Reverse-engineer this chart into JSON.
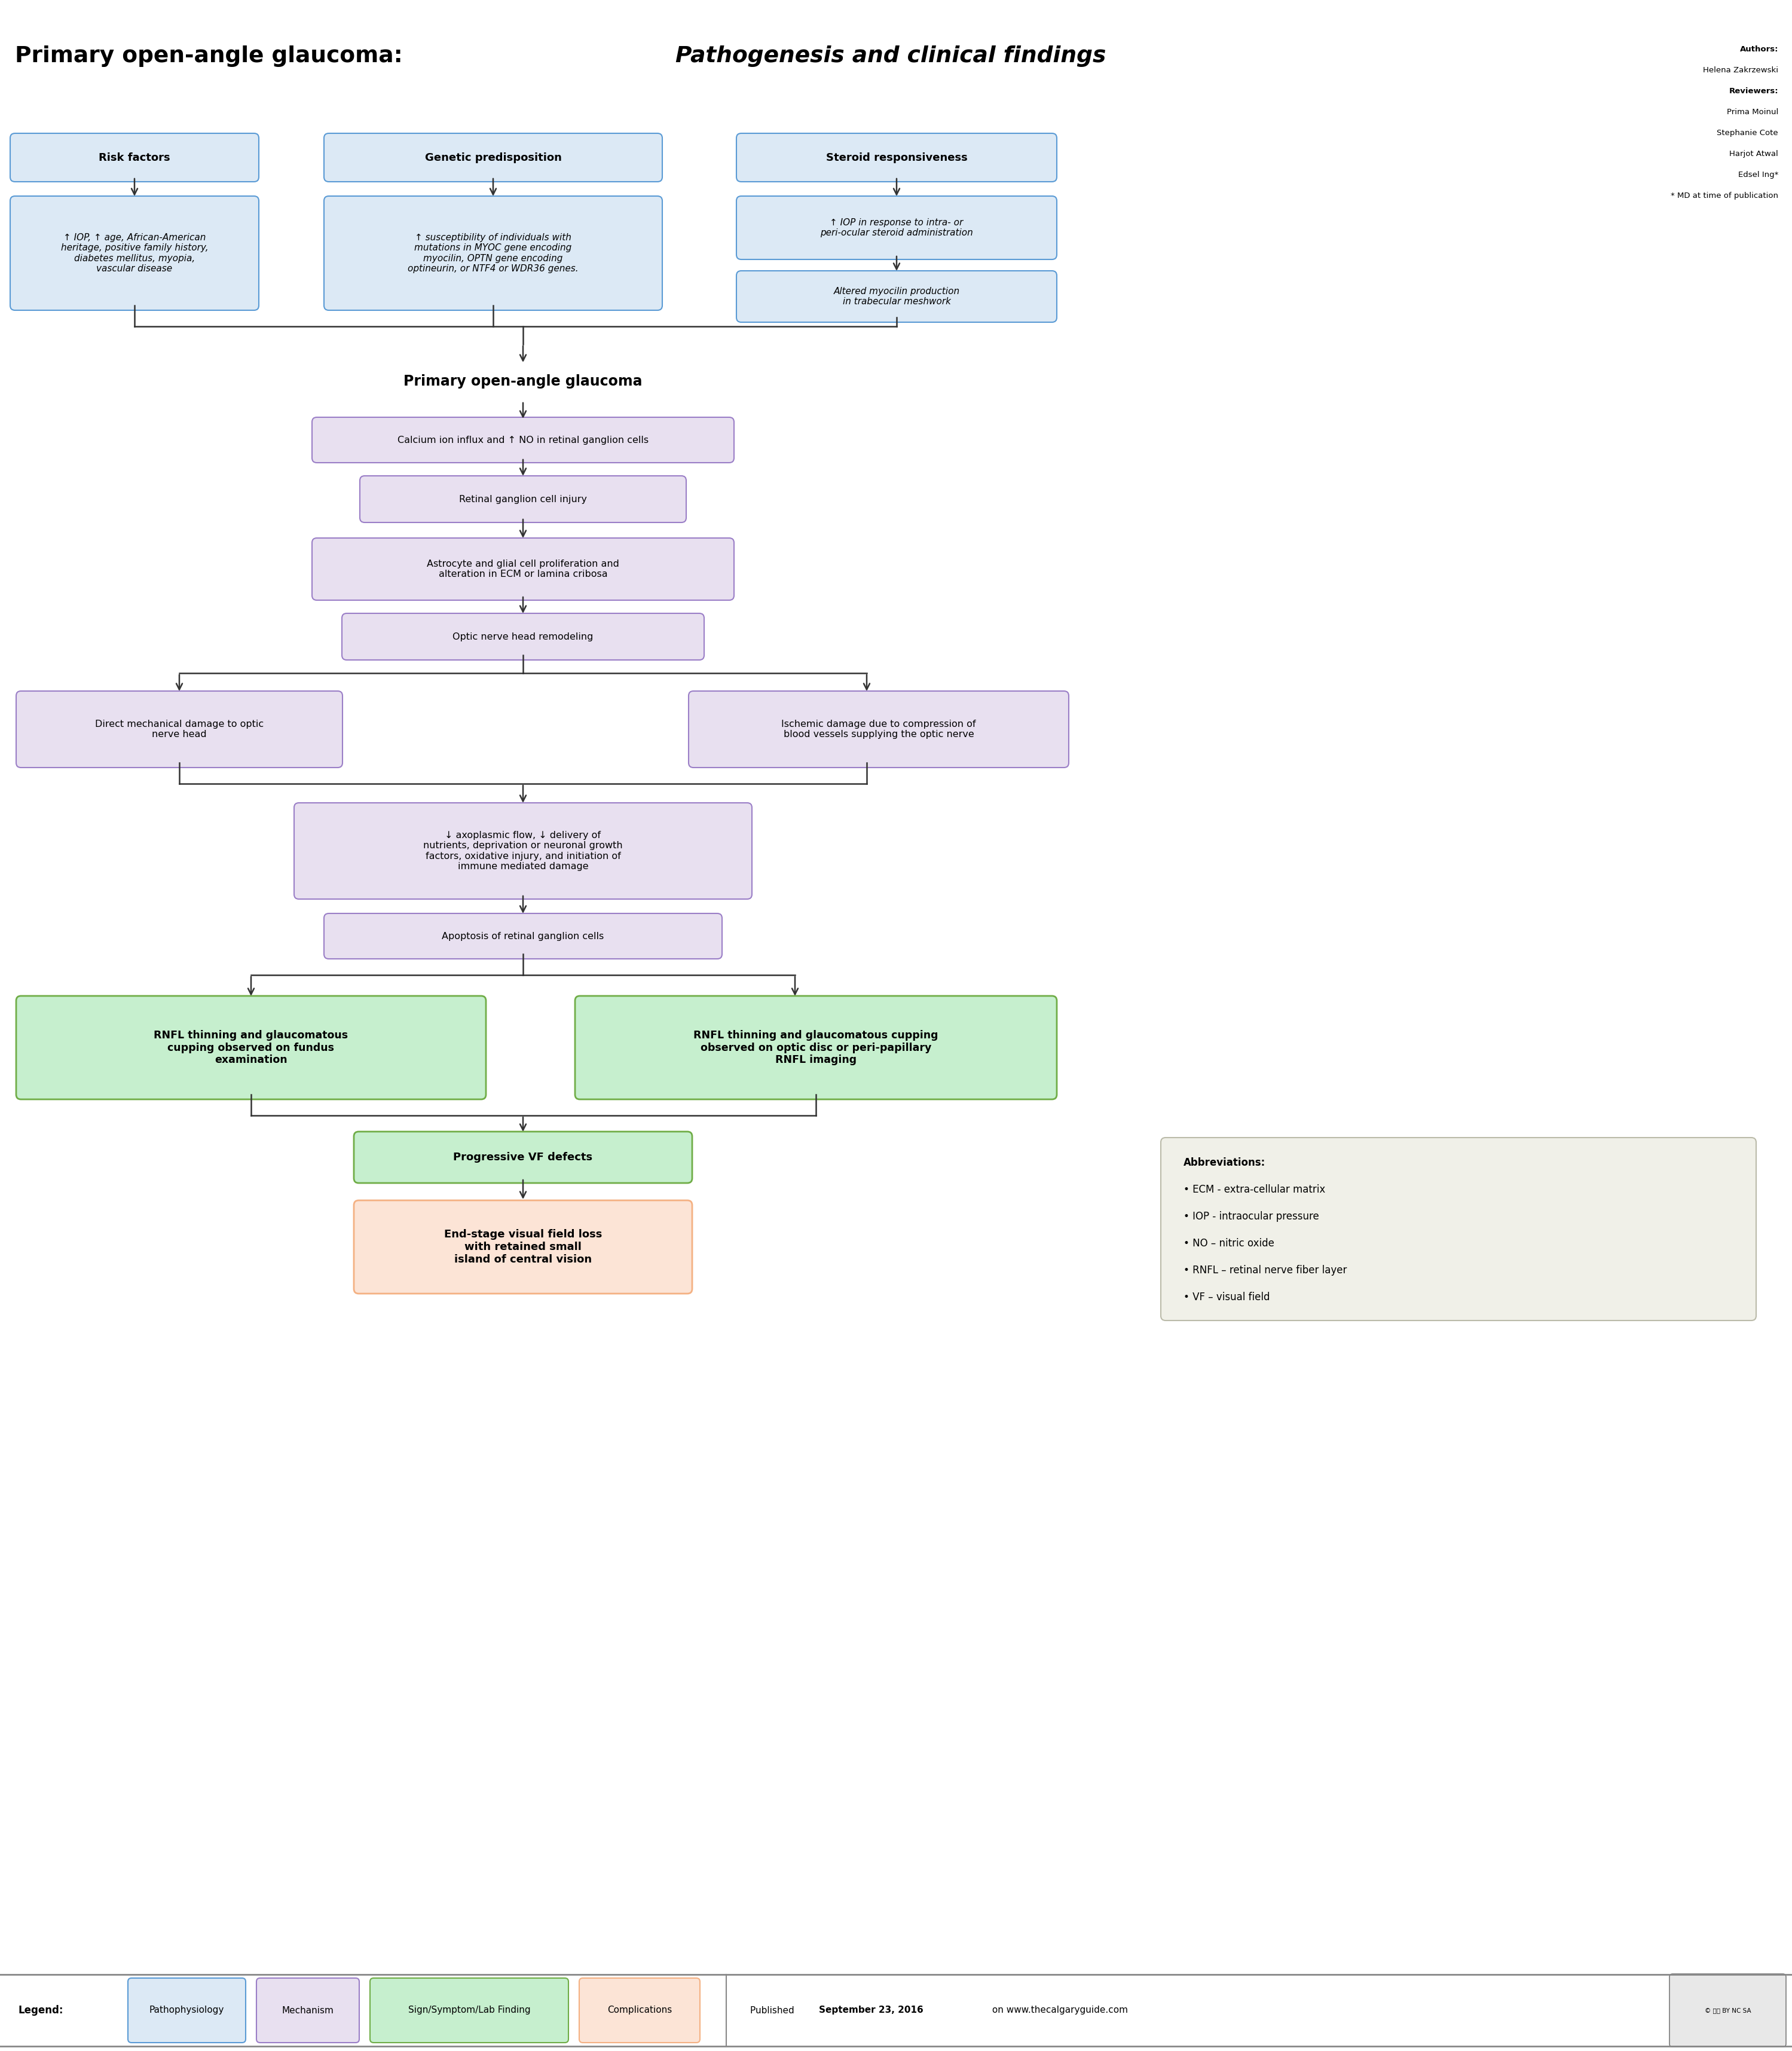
{
  "title_normal": "Primary open-angle glaucoma: ",
  "title_italic": "Pathogenesis and clinical findings",
  "bg_color": "#ffffff",
  "box_blue_light": "#dce9f5",
  "box_blue_border": "#5b9bd5",
  "box_purple_light": "#e8e0f0",
  "box_purple_border": "#9b7fc7",
  "box_green_light": "#c6efce",
  "box_green_border": "#70ad47",
  "box_pink_light": "#fce4d6",
  "box_pink_border": "#f4b183",
  "box_abbrev_bg": "#f0f0e8",
  "box_abbrev_border": "#bbbbaa",
  "arrow_color": "#333333",
  "line_color": "#333333",
  "authors": [
    [
      "Authors:",
      true
    ],
    [
      "Helena Zakrzewski",
      false
    ],
    [
      "Reviewers:",
      true
    ],
    [
      "Prima Moinul",
      false
    ],
    [
      "Stephanie Cote",
      false
    ],
    [
      "Harjot Atwal",
      false
    ],
    [
      "Edsel Ing*",
      false
    ],
    [
      "* MD at time of publication",
      false
    ]
  ],
  "legend_labels": [
    "Pathophysiology",
    "Mechanism",
    "Sign/Symptom/Lab Finding",
    "Complications"
  ],
  "legend_facecolors": [
    "#dce9f5",
    "#e8e0f0",
    "#c6efce",
    "#fce4d6"
  ],
  "legend_edgecolors": [
    "#5b9bd5",
    "#9b7fc7",
    "#70ad47",
    "#f4b183"
  ]
}
